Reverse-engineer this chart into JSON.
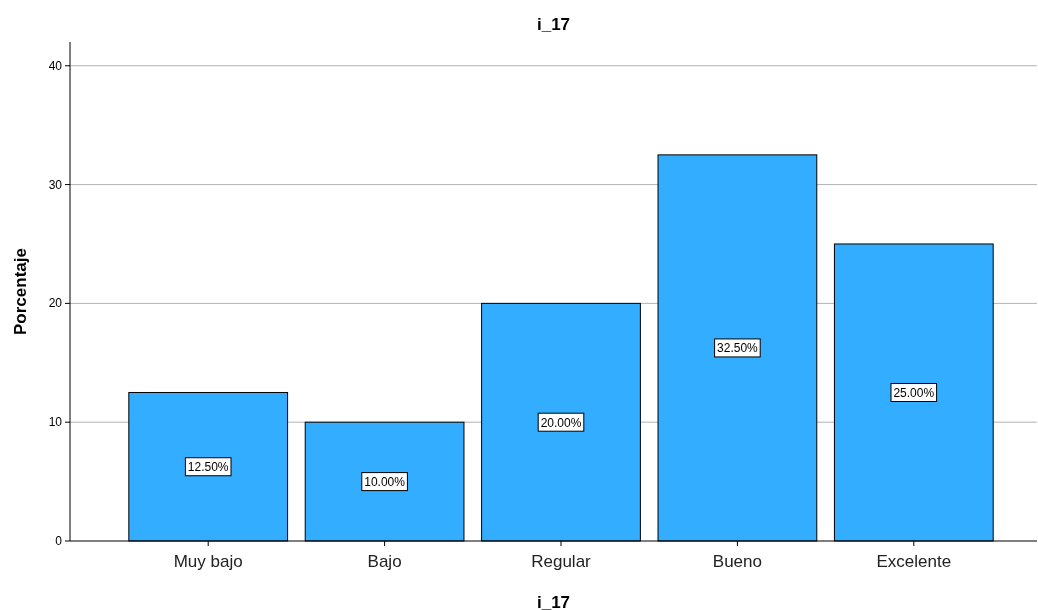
{
  "chart_data": {
    "type": "bar",
    "title": "i_17",
    "xlabel": "i_17",
    "ylabel": "Porcentaje",
    "categories": [
      "Muy bajo",
      "Bajo",
      "Regular",
      "Bueno",
      "Excelente"
    ],
    "values": [
      12.5,
      10,
      20,
      32.5,
      25
    ],
    "value_labels": [
      "12.50%",
      "10.00%",
      "20.00%",
      "32.50%",
      "25.00%"
    ],
    "color": "#33adff",
    "ylim": [
      0,
      42
    ],
    "yticks": [
      0,
      10,
      20,
      30,
      40
    ],
    "grid": "y"
  }
}
